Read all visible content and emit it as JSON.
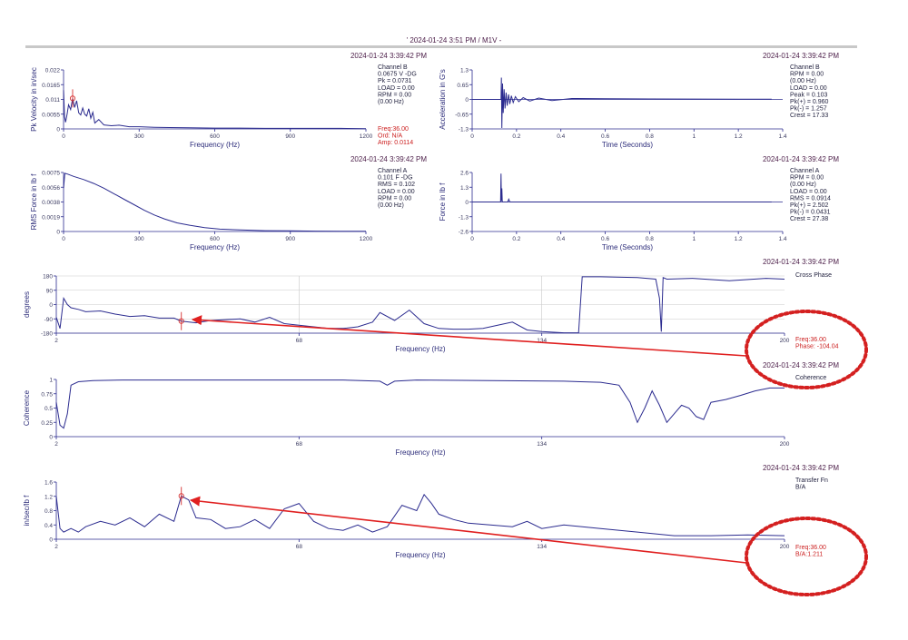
{
  "page": {
    "title": "' 2024-01-24 3:51 PM / M1V -"
  },
  "chart_data": [
    {
      "id": "velocity-spectrum",
      "type": "line",
      "timestamp": "2024-01-24 3:39:42 PM",
      "xlabel": "Frequency (Hz)",
      "ylabel": "Pk Velocity in in/sec",
      "xlim": [
        0,
        1200
      ],
      "ylim": [
        0,
        0.022
      ],
      "xticks": [
        "0",
        "300",
        "600",
        "900",
        "1200"
      ],
      "yticks": [
        "0",
        "0.0055",
        "0.011",
        "0.0165",
        "0.022"
      ],
      "info": [
        "Channel B",
        "0.0675 V -DG",
        "Pk = 0.0731",
        "LOAD = 0.00",
        "RPM = 0.00",
        "(0.00 Hz)"
      ],
      "red_info": [
        "Freq:36.00",
        "Ord:  N/A",
        "Amp: 0.0114"
      ],
      "cursor": {
        "x": 36,
        "y": 0.0114
      },
      "series": [
        {
          "x": [
            0,
            4,
            8,
            14,
            20,
            28,
            36,
            44,
            52,
            60,
            68,
            76,
            84,
            92,
            100,
            108,
            116,
            124,
            140,
            160,
            190,
            220,
            260,
            300,
            360,
            420,
            500,
            600,
            700,
            800,
            900,
            1000,
            1100,
            1200
          ],
          "y": [
            0.0145,
            0.0045,
            0.0025,
            0.0055,
            0.009,
            0.0072,
            0.0114,
            0.008,
            0.0105,
            0.006,
            0.0052,
            0.0078,
            0.0055,
            0.0048,
            0.0075,
            0.004,
            0.0062,
            0.0022,
            0.0035,
            0.0015,
            0.0012,
            0.0014,
            0.0008,
            0.0008,
            0.0006,
            0.0005,
            0.0004,
            0.0003,
            0.0003,
            0.0002,
            0.0002,
            0.0002,
            0.0002,
            0.0001
          ]
        }
      ]
    },
    {
      "id": "acceleration-waveform",
      "type": "line",
      "timestamp": "2024-01-24 3:39:42 PM",
      "xlabel": "Time (Seconds)",
      "ylabel": "Acceleration in G's",
      "xlim": [
        0,
        1.4
      ],
      "ylim": [
        -1.3,
        1.3
      ],
      "xticks": [
        "0",
        "0.2",
        "0.4",
        "0.6",
        "0.8",
        "1",
        "1.2",
        "1.4"
      ],
      "yticks": [
        "-1.3",
        "-0.65",
        "0",
        "0.65",
        "1.3"
      ],
      "info": [
        "Channel B",
        "RPM = 0.00",
        "(0.00 Hz)",
        "LOAD = 0.00",
        "Peak = 0.103",
        "Pk(+) = 0.960",
        "Pk(-) = 1.257",
        "Crest = 17.33"
      ],
      "series": [
        {
          "x": [
            0,
            0.13,
            0.132,
            0.134,
            0.137,
            0.14,
            0.144,
            0.148,
            0.153,
            0.158,
            0.164,
            0.17,
            0.177,
            0.185,
            0.195,
            0.21,
            0.23,
            0.26,
            0.3,
            0.36,
            0.45,
            0.6,
            0.8,
            1.0,
            1.2,
            1.35
          ],
          "y": [
            0,
            0,
            0.96,
            -1.26,
            0.7,
            -0.6,
            0.45,
            -0.4,
            0.3,
            -0.28,
            0.22,
            -0.2,
            0.16,
            -0.14,
            0.12,
            -0.1,
            0.08,
            -0.07,
            0.06,
            -0.05,
            0.04,
            0.03,
            0.02,
            0.015,
            0.01,
            0.01
          ]
        }
      ]
    },
    {
      "id": "force-spectrum",
      "type": "line",
      "timestamp": "2024-01-24 3:39:42 PM",
      "xlabel": "Frequency (Hz)",
      "ylabel": "RMS Force in lb f",
      "xlim": [
        0,
        1200
      ],
      "ylim": [
        0,
        0.0075
      ],
      "xticks": [
        "0",
        "300",
        "600",
        "900",
        "1200"
      ],
      "yticks": [
        "0",
        "0.0019",
        "0.0038",
        "0.0056",
        "0.0075"
      ],
      "info": [
        "Channel A",
        "0.101 F -DG",
        "RMS = 0.102",
        "LOAD = 0.00",
        "RPM = 0.00",
        "(0.00 Hz)"
      ],
      "series": [
        {
          "x": [
            0,
            5,
            15,
            40,
            80,
            120,
            160,
            200,
            240,
            280,
            320,
            360,
            400,
            450,
            500,
            560,
            620,
            700,
            800,
            900,
            1000,
            1100,
            1200
          ],
          "y": [
            0.0055,
            0.0074,
            0.0073,
            0.007,
            0.0066,
            0.0061,
            0.0055,
            0.0048,
            0.0041,
            0.0034,
            0.0027,
            0.0021,
            0.0016,
            0.0011,
            0.0008,
            0.0005,
            0.0003,
            0.0002,
            0.0001,
            8e-05,
            5e-05,
            3e-05,
            2e-05
          ]
        }
      ]
    },
    {
      "id": "force-waveform",
      "type": "line",
      "timestamp": "2024-01-24 3:39:42 PM",
      "xlabel": "Time (Seconds)",
      "ylabel": "Force in lb f",
      "xlim": [
        0,
        1.4
      ],
      "ylim": [
        -2.6,
        2.6
      ],
      "xticks": [
        "0",
        "0.2",
        "0.4",
        "0.6",
        "0.8",
        "1",
        "1.2",
        "1.4"
      ],
      "yticks": [
        "-2.6",
        "-1.3",
        "0",
        "1.3",
        "2.6"
      ],
      "info": [
        "Channel A",
        "RPM = 0.00",
        "(0.00 Hz)",
        "LOAD = 0.00",
        "RMS = 0.0914",
        "Pk(+) = 2.502",
        "Pk(-) = 0.0431",
        "Crest = 27.38"
      ],
      "series": [
        {
          "x": [
            0,
            0.128,
            0.13,
            0.132,
            0.134,
            0.136,
            0.15,
            0.16,
            0.165,
            0.17,
            1.35
          ],
          "y": [
            0,
            0,
            2.5,
            0.1,
            1.2,
            0,
            0,
            0,
            0.25,
            0,
            0
          ]
        }
      ]
    },
    {
      "id": "cross-phase",
      "type": "line",
      "timestamp": "2024-01-24 3:39:42 PM",
      "xlabel": "Frequency (Hz)",
      "ylabel": "degrees",
      "xlim": [
        2,
        200
      ],
      "ylim": [
        -180,
        180
      ],
      "xticks": [
        "2",
        "68",
        "134",
        "200"
      ],
      "yticks": [
        "-180",
        "-90",
        "0",
        "90",
        "180"
      ],
      "info": [
        "Cross Phase"
      ],
      "red_info": [
        "Freq:36.00",
        "Phase: -104.04"
      ],
      "cursor": {
        "x": 36,
        "y": -104.04
      },
      "series": [
        {
          "x": [
            2,
            3,
            4,
            5,
            6,
            8,
            10,
            14,
            18,
            22,
            26,
            30,
            34,
            36,
            40,
            44,
            48,
            52,
            56,
            60,
            64,
            68,
            72,
            76,
            80,
            84,
            88,
            90,
            94,
            98,
            102,
            106,
            110,
            114,
            118,
            122,
            126,
            130,
            134,
            140,
            144,
            145,
            150,
            160,
            165,
            166,
            166.5,
            167,
            168,
            175,
            185,
            195,
            200
          ],
          "y": [
            -80,
            -150,
            40,
            0,
            -20,
            -30,
            -45,
            -40,
            -60,
            -75,
            -70,
            -85,
            -85,
            -104,
            -115,
            -100,
            -95,
            -90,
            -110,
            -80,
            -120,
            -130,
            -140,
            -150,
            -150,
            -140,
            -110,
            -50,
            -100,
            -35,
            -120,
            -150,
            -155,
            -155,
            -150,
            -130,
            -110,
            -160,
            -170,
            -178,
            -178,
            175,
            175,
            170,
            160,
            40,
            -170,
            170,
            160,
            165,
            150,
            165,
            160
          ]
        }
      ]
    },
    {
      "id": "coherence",
      "type": "line",
      "timestamp": "2024-01-24 3:39:42 PM",
      "xlabel": "Frequency (Hz)",
      "ylabel": "Coherence",
      "xlim": [
        2,
        200
      ],
      "ylim": [
        0,
        1
      ],
      "xticks": [
        "2",
        "68",
        "134",
        "200"
      ],
      "yticks": [
        "0",
        "0.25",
        "0.5",
        "0.75",
        "1"
      ],
      "info": [
        "Coherence"
      ],
      "series": [
        {
          "x": [
            2,
            3,
            4,
            5,
            6,
            8,
            12,
            20,
            40,
            60,
            80,
            90,
            92,
            94,
            100,
            120,
            140,
            150,
            155,
            158,
            160,
            162,
            164,
            166,
            168,
            170,
            172,
            174,
            176,
            178,
            180,
            184,
            188,
            192,
            196,
            200
          ],
          "y": [
            0.6,
            0.2,
            0.15,
            0.4,
            0.9,
            0.96,
            0.98,
            0.99,
            0.99,
            0.99,
            0.99,
            0.97,
            0.9,
            0.97,
            0.99,
            0.98,
            0.97,
            0.95,
            0.9,
            0.6,
            0.25,
            0.5,
            0.8,
            0.55,
            0.25,
            0.4,
            0.55,
            0.5,
            0.35,
            0.3,
            0.6,
            0.65,
            0.72,
            0.8,
            0.85,
            0.85
          ]
        }
      ]
    },
    {
      "id": "transfer-fn",
      "type": "line",
      "timestamp": "2024-01-24 3:39:42 PM",
      "xlabel": "Frequency (Hz)",
      "ylabel": "in/sec/lb f",
      "xlim": [
        2,
        200
      ],
      "ylim": [
        0,
        1.6
      ],
      "xticks": [
        "2",
        "68",
        "134",
        "200"
      ],
      "yticks": [
        "0",
        "0.4",
        "0.8",
        "1.2",
        "1.6"
      ],
      "info": [
        "Transfer Fn",
        "B/A"
      ],
      "red_info": [
        "Freq:36.00",
        "B/A:1.211"
      ],
      "cursor": {
        "x": 36,
        "y": 1.211
      },
      "series": [
        {
          "x": [
            2,
            3,
            4,
            6,
            8,
            10,
            14,
            18,
            22,
            26,
            30,
            34,
            36,
            38,
            40,
            44,
            48,
            52,
            56,
            60,
            64,
            68,
            72,
            76,
            80,
            84,
            88,
            92,
            96,
            100,
            102,
            104,
            106,
            110,
            114,
            120,
            126,
            130,
            134,
            140,
            150,
            160,
            165,
            170,
            180,
            190,
            200
          ],
          "y": [
            1.2,
            0.3,
            0.2,
            0.3,
            0.2,
            0.35,
            0.5,
            0.4,
            0.6,
            0.35,
            0.7,
            0.5,
            1.21,
            1.1,
            0.6,
            0.55,
            0.3,
            0.35,
            0.55,
            0.3,
            0.85,
            1.0,
            0.5,
            0.3,
            0.25,
            0.4,
            0.2,
            0.35,
            0.95,
            0.8,
            1.25,
            1.0,
            0.7,
            0.55,
            0.45,
            0.4,
            0.35,
            0.5,
            0.3,
            0.4,
            0.3,
            0.2,
            0.15,
            0.1,
            0.1,
            0.12,
            0.1
          ]
        }
      ]
    }
  ]
}
